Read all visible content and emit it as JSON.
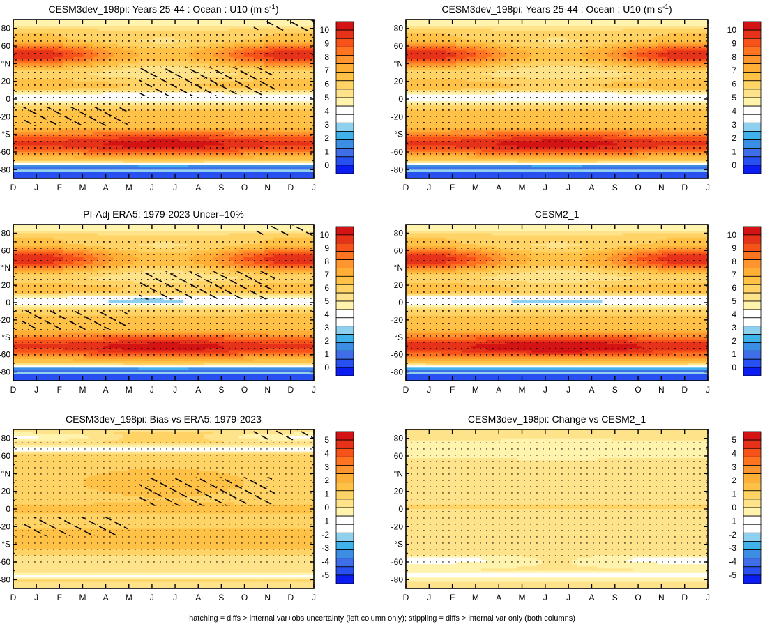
{
  "figure": {
    "footnote": "hatching = diffs > internal var+obs uncertainty (left column only); stippling = diffs > internal var only (both columns)"
  },
  "colors": {
    "full_levels": [
      "#0a1cf0",
      "#2850f0",
      "#3f6ee8",
      "#3c8ee4",
      "#3fb2ec",
      "#8fd0ee",
      "#ffffff",
      "#ffffff",
      "#fff3ae",
      "#ffe38a",
      "#ffd365",
      "#ffc247",
      "#ffae36",
      "#ff952e",
      "#ff7420",
      "#f6521a",
      "#e63219",
      "#d41414"
    ],
    "diff_levels": [
      "#0a1cf0",
      "#2850f0",
      "#3f6ee8",
      "#3c8ee4",
      "#3fb2ec",
      "#8fd0ee",
      "#ffffff",
      "#ffffff",
      "#fff3ae",
      "#ffe38a",
      "#ffd365",
      "#ffc247",
      "#ffae36",
      "#ff952e",
      "#ff7420",
      "#f6521a",
      "#e63219",
      "#d41414"
    ]
  },
  "axes": {
    "months": [
      "D",
      "J",
      "F",
      "M",
      "A",
      "M",
      "J",
      "J",
      "A",
      "S",
      "O",
      "N",
      "D",
      "J"
    ],
    "lat_labels": [
      "80",
      "60",
      "°N",
      "20",
      "0",
      "-20",
      "°S",
      "-60",
      "-80"
    ]
  },
  "chart_data": [
    {
      "type": "heatmap",
      "title": "CESM3dev_198pi: Years 25-44 : Ocean : U10 (m s",
      "title_sup": "-1",
      "title_end": ")",
      "x": [
        "D",
        "J",
        "F",
        "M",
        "A",
        "M",
        "J",
        "J",
        "A",
        "S",
        "O",
        "N",
        "D",
        "J"
      ],
      "y_ticks": [
        "80",
        "60",
        "°N",
        "20",
        "0",
        "-20",
        "°S",
        "-60",
        "-80"
      ],
      "ylim": [
        -90,
        90
      ],
      "colorbar": {
        "labels": [
          "10",
          "9",
          "8",
          "7",
          "6",
          "5",
          "4",
          "3",
          "2",
          "1",
          "0"
        ],
        "range": [
          0,
          10
        ]
      },
      "field": "full",
      "model_variant": 0,
      "hatching": true,
      "stippling": true
    },
    {
      "type": "heatmap",
      "title": "CESM3dev_198pi: Years 25-44 : Ocean : U10 (m s",
      "title_sup": "-1",
      "title_end": ")",
      "x": [
        "D",
        "J",
        "F",
        "M",
        "A",
        "M",
        "J",
        "J",
        "A",
        "S",
        "O",
        "N",
        "D",
        "J"
      ],
      "y_ticks": [
        "80",
        "60",
        "°N",
        "20",
        "0",
        "-20",
        "°S",
        "-60",
        "-80"
      ],
      "ylim": [
        -90,
        90
      ],
      "colorbar": {
        "labels": [
          "10",
          "9",
          "8",
          "7",
          "6",
          "5",
          "4",
          "3",
          "2",
          "1",
          "0"
        ],
        "range": [
          0,
          10
        ]
      },
      "field": "full",
      "model_variant": 0,
      "hatching": false,
      "stippling": true
    },
    {
      "type": "heatmap",
      "title": "PI-Adj ERA5: 1979-2023 Uncer=10%",
      "x": [
        "D",
        "J",
        "F",
        "M",
        "A",
        "M",
        "J",
        "J",
        "A",
        "S",
        "O",
        "N",
        "D",
        "J"
      ],
      "y_ticks": [
        "80",
        "60",
        "°N",
        "20",
        "0",
        "-20",
        "°S",
        "-60",
        "-80"
      ],
      "ylim": [
        -90,
        90
      ],
      "colorbar": {
        "labels": [
          "10",
          "9",
          "8",
          "7",
          "6",
          "5",
          "4",
          "3",
          "2",
          "1",
          "0"
        ],
        "range": [
          0,
          10
        ]
      },
      "field": "full",
      "model_variant": 1,
      "hatching": true,
      "stippling": true
    },
    {
      "type": "heatmap",
      "title": "CESM2_1",
      "x": [
        "D",
        "J",
        "F",
        "M",
        "A",
        "M",
        "J",
        "J",
        "A",
        "S",
        "O",
        "N",
        "D",
        "J"
      ],
      "y_ticks": [
        "80",
        "60",
        "°N",
        "20",
        "0",
        "-20",
        "°S",
        "-60",
        "-80"
      ],
      "ylim": [
        -90,
        90
      ],
      "colorbar": {
        "labels": [
          "10",
          "9",
          "8",
          "7",
          "6",
          "5",
          "4",
          "3",
          "2",
          "1",
          "0"
        ],
        "range": [
          0,
          10
        ]
      },
      "field": "full",
      "model_variant": 2,
      "hatching": false,
      "stippling": true
    },
    {
      "type": "heatmap",
      "title": "CESM3dev_198pi: Bias vs ERA5: 1979-2023",
      "x": [
        "D",
        "J",
        "F",
        "M",
        "A",
        "M",
        "J",
        "J",
        "A",
        "S",
        "O",
        "N",
        "D",
        "J"
      ],
      "y_ticks": [
        "80",
        "60",
        "°N",
        "20",
        "0",
        "-20",
        "°S",
        "-60",
        "-80"
      ],
      "ylim": [
        -90,
        90
      ],
      "colorbar": {
        "labels": [
          "5",
          "4",
          "3",
          "2",
          "1",
          "0",
          "-1",
          "-2",
          "-3",
          "-4",
          "-5"
        ],
        "range": [
          -5,
          5
        ]
      },
      "field": "bias",
      "hatching": true,
      "stippling": true
    },
    {
      "type": "heatmap",
      "title": "CESM3dev_198pi: Change vs CESM2_1",
      "x": [
        "D",
        "J",
        "F",
        "M",
        "A",
        "M",
        "J",
        "J",
        "A",
        "S",
        "O",
        "N",
        "D",
        "J"
      ],
      "y_ticks": [
        "80",
        "60",
        "°N",
        "20",
        "0",
        "-20",
        "°S",
        "-60",
        "-80"
      ],
      "ylim": [
        -90,
        90
      ],
      "colorbar": {
        "labels": [
          "5",
          "4",
          "3",
          "2",
          "1",
          "0",
          "-1",
          "-2",
          "-3",
          "-4",
          "-5"
        ],
        "range": [
          -5,
          5
        ]
      },
      "field": "change",
      "hatching": false,
      "stippling": true
    }
  ]
}
